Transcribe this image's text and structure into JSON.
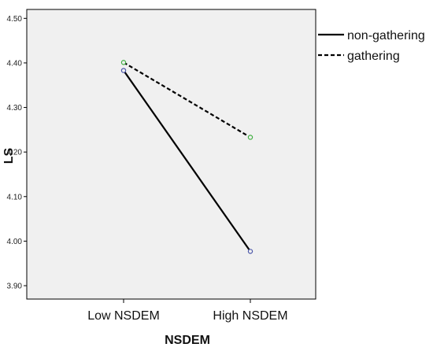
{
  "chart_data": {
    "type": "line",
    "title": "",
    "xlabel": "NSDEM",
    "ylabel": "LS",
    "categories": [
      "Low NSDEM",
      "High NSDEM"
    ],
    "ylim": [
      3.87,
      4.52
    ],
    "yticks": [
      "3.90",
      "4.00",
      "4.10",
      "4.20",
      "4.30",
      "4.40",
      "4.50"
    ],
    "legend_position": "right",
    "grid": false,
    "series": [
      {
        "name": "non-gathering",
        "values": [
          4.383,
          3.977
        ],
        "style": "solid",
        "marker_color": "#4a55a8"
      },
      {
        "name": "gathering",
        "values": [
          4.401,
          4.233
        ],
        "style": "dashed",
        "marker_color": "#3fae3f"
      }
    ],
    "colors": {
      "plot_background": "#f0f0f0",
      "line": "#000000",
      "axis": "#000000"
    }
  }
}
